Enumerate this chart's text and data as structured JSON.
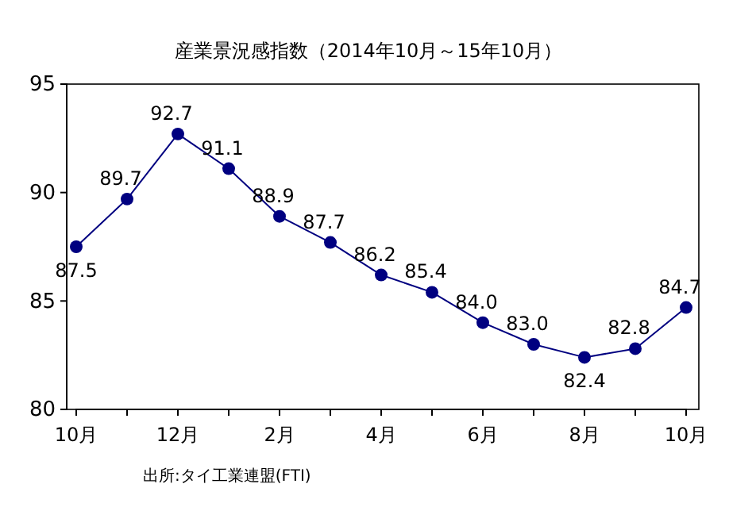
{
  "chart_data": {
    "type": "line",
    "title": "産業景況感指数（2014年10月～15年10月）",
    "categories": [
      "10月",
      null,
      "12月",
      null,
      "2月",
      null,
      "4月",
      null,
      "6月",
      null,
      "8月",
      null,
      "10月"
    ],
    "series": [
      {
        "color": "#000080",
        "values": [
          87.5,
          89.7,
          92.7,
          91.1,
          88.9,
          87.7,
          86.2,
          85.4,
          84.0,
          83.0,
          82.4,
          82.8,
          84.7
        ],
        "value_labels": [
          "87.5",
          "89.7",
          "92.7",
          "91.1",
          "88.9",
          "87.7",
          "86.2",
          "85.4",
          "84.0",
          "83.0",
          "82.4",
          "82.8",
          "84.7"
        ]
      }
    ],
    "ylim": [
      80,
      95
    ],
    "yticks": [
      80,
      85,
      90,
      95
    ],
    "grid": false,
    "marker": "circle",
    "line_style": "solid",
    "annotations": [
      "出所:タイ工業連盟(FTI)"
    ]
  }
}
